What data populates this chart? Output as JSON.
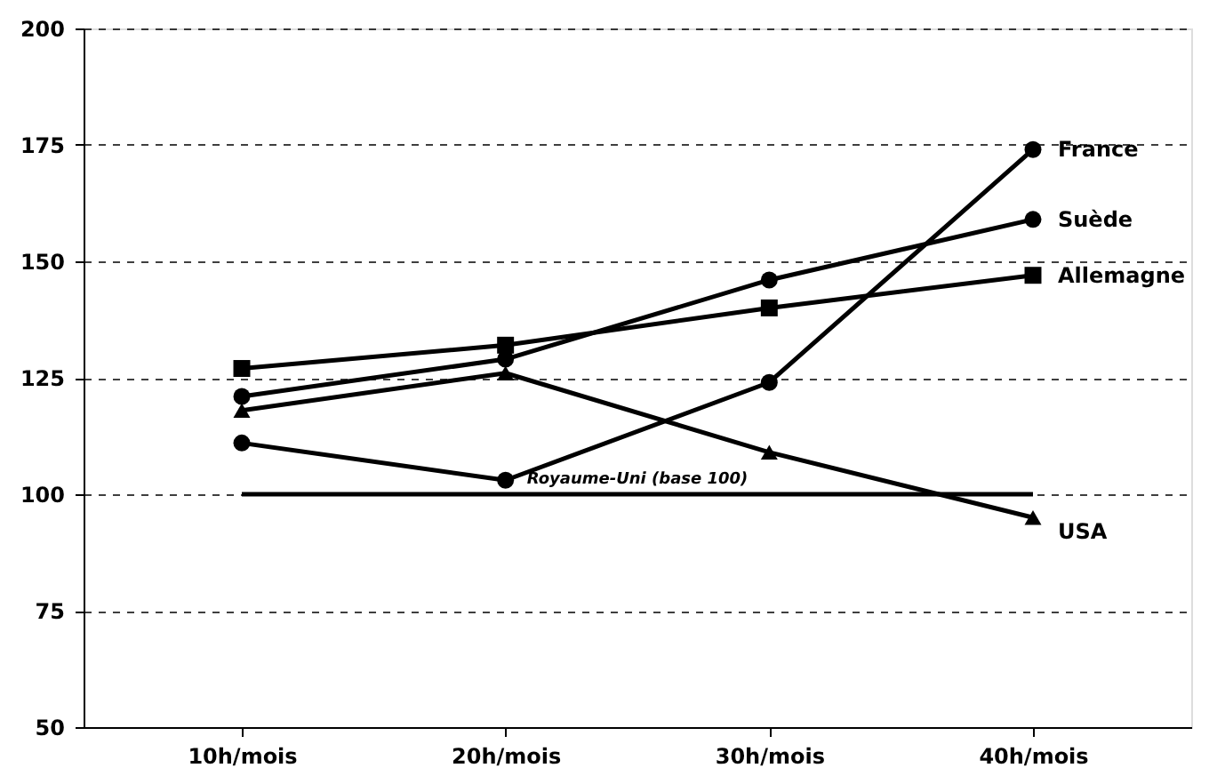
{
  "chart_data": {
    "type": "line",
    "categories": [
      "10h/mois",
      "20h/mois",
      "30h/mois",
      "40h/mois"
    ],
    "ylim": [
      50,
      200
    ],
    "yticks": [
      50,
      75,
      100,
      125,
      150,
      175,
      200
    ],
    "grid": "y",
    "series": [
      {
        "name": "France",
        "color": "#000000",
        "marker": "circle",
        "values": [
          111,
          103,
          124,
          174
        ]
      },
      {
        "name": "Suède",
        "color": "#000000",
        "marker": "circle",
        "values": [
          121,
          129,
          146,
          159
        ]
      },
      {
        "name": "Allemagne",
        "color": "#000000",
        "marker": "square",
        "values": [
          127,
          132,
          140,
          147
        ]
      },
      {
        "name": "USA",
        "color": "#000000",
        "marker": "triangle",
        "values": [
          118,
          126,
          109,
          95
        ]
      },
      {
        "name": "Royaume-Uni (base 100)",
        "color": "#000000",
        "marker": "none",
        "values": [
          100,
          100,
          100,
          100
        ]
      }
    ]
  }
}
